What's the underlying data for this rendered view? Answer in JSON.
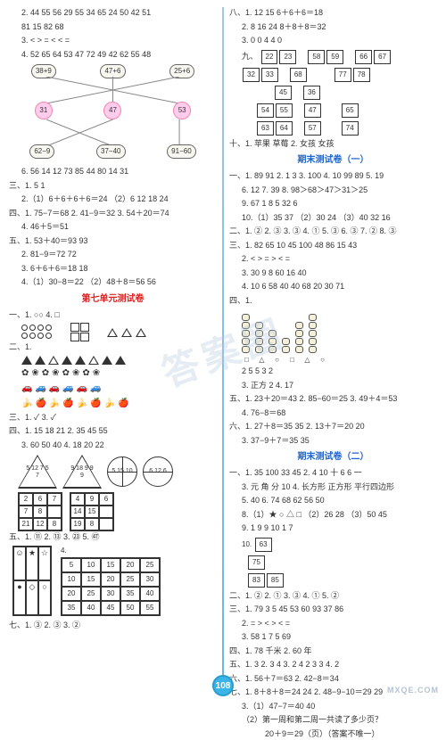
{
  "pageNumber": "108",
  "watermark": "答案圈",
  "footerMark": "MXQE.COM",
  "left": {
    "l1": "2. 44  55  56  29  55  34  65  24  50  42  51",
    "l2": "81  15  82  68",
    "l3": "3.  <   >   =   <   <   =",
    "l4": "4. 52  65  64  53  47  72  49  42  62  55  48",
    "connTop": [
      "38+9",
      "47+6",
      "25+6"
    ],
    "connMid": [
      "31",
      "47",
      "53"
    ],
    "connBot": [
      "62−9",
      "37−40",
      "91−60"
    ],
    "l5": "6. 56  14  12  73  85  44  80  14  31",
    "l6": "三、1. 5  1",
    "l7": "2.（1）6＋6＋6＋6＝24  （2）6  12  18  24",
    "l8": "四、1. 75−7＝68  2. 41−9＝32  3. 54＋20＝74",
    "l9": "4. 46＋5＝51",
    "l10": "五、1. 53＋40＝93  93",
    "l11": "2. 81−9＝72  72",
    "l12": "3. 6＋6＋6＝18  18",
    "l13": "4.（1）30−8＝22   （2）48＋8＝56  56",
    "h1": "第七单元测试卷",
    "l14": "一、1. ○○  4. □",
    "l15": "二、1.",
    "l16": "三、1. ✓  3. ✓",
    "l17": "四、1. 15  18  21  2. 35  45  55",
    "l18": "3. 60  50  40  4. 18  20  22",
    "triA": "5 12\n7\n5 7",
    "triB": "9 18\n9\n9 9",
    "circA": "5 15\n10",
    "circB": "6 12\n6",
    "rectA": [
      "2",
      "6",
      "7",
      "7",
      "8",
      "21",
      "12",
      "8"
    ],
    "rectB": [
      "4",
      "9",
      "6",
      "14",
      "15",
      "19",
      "8"
    ],
    "l19": "五、1. ⑪  2. ⑬  3. ㉓  5. ㊼",
    "grid5": [
      [
        "5",
        "10",
        "15",
        "20",
        "25"
      ],
      [
        "10",
        "15",
        "20",
        "25",
        "30"
      ],
      [
        "20",
        "25",
        "30",
        "35",
        "40"
      ],
      [
        "35",
        "40",
        "45",
        "50",
        "55"
      ]
    ],
    "sixThree": {
      "a": "☺",
      "b": "★",
      "c": "☆",
      "d": "●",
      "e": "◇",
      "f": "○"
    },
    "l20": "七、1. ③  2. ③  3. ②"
  },
  "right": {
    "l1": "八、1. 12  15  6＋6＋6＝18",
    "l2": "2. 8  16  24  8＋8＋8＝32",
    "l3": "3. 0  0  4  4  0",
    "boxRow1": [
      [
        "22",
        "23"
      ],
      [
        "58",
        "59"
      ],
      [
        "66",
        "67"
      ]
    ],
    "boxRow2": [
      [
        "32",
        "33"
      ],
      [
        "68"
      ],
      [
        "77",
        "78"
      ]
    ],
    "boxRow3": [
      [
        "45",
        "36"
      ]
    ],
    "boxRow4": [
      [
        "54",
        "55"
      ],
      [
        "47"
      ],
      [
        "65"
      ]
    ],
    "boxRow5": [
      [
        "63",
        "64"
      ],
      [
        "57"
      ],
      [
        "74"
      ]
    ],
    "l4": "十、1. 苹果  草莓  2. 女孩  女孩",
    "h2": "期末测试卷（一）",
    "l5": "一、1. 89  91  2. 1  3  3. 100  4. 10  99  89  5. 19",
    "l6": "6. 12  7. 39  8. 98＞68＞47＞31＞25",
    "l7": "9. 67  1  8  5  32  6",
    "l8": "10.（1）35  37 （2）30  24 （3）40  32  16",
    "l9": "二、1. ②  2. ③  3. ③  4. ①  5. ③  6. ③  7. ②  8. ③",
    "l10": "三、1. 82  65  10  45  100  48  86  15  43",
    "l11": "2.  <   >   =   >   <   =",
    "l12": "3. 30  9  8  60  16  40",
    "l13": "4. 10  6  58  40  40  68  20  30  71",
    "l14": "四、1.",
    "stacks": [
      5,
      4,
      3,
      2,
      4,
      5
    ],
    "stackLbls": [
      "□",
      "△",
      "○",
      "□",
      "△",
      "○"
    ],
    "l15": "2  5  5  3  2",
    "l16": "3. 正方  2  4. 17",
    "l17": "五、1. 23＋20＝43  2. 85−60＝25  3. 49＋4＝53",
    "l18": "4. 76−8＝68",
    "l19": "六、1. 27＋8＝35   35   2. 13＋7＝20   20",
    "l20": "3. 37−9＋7＝35   35",
    "h3": "期末测试卷（二）",
    "l21": "一、1. 35  100  33  45  2. 4  10  十  6  6  一",
    "l22": "3. 元  角  分  10  4. 长方形  正方形  平行四边形",
    "l23": "5. 40  6. 74  68  62  56  50",
    "l24": "8.（1）★ ○ △ □ （2）26  28 （3）50  45",
    "l25": "9. 1  9  9  10  1  7",
    "boxV": [
      [
        "10",
        "63"
      ],
      [
        "75"
      ],
      [
        "83",
        "85"
      ]
    ],
    "l26": "二、1. ②  2. ①  3. ③  4. ①  5. ②",
    "l27": "三、1. 79  3  5  45  53  60  93  37  86",
    "l28": "2.  =   >   <   >   <   =",
    "l29": "3. 58  1  7  5  69",
    "l30": "四、1. 78 千米  2. 60 年",
    "l31": "五、1. 3  2. 3  4  3. 2  4  2  3  3  4. 2",
    "l32": "六、1. 56＋7＝63  2. 42−8＝34",
    "l33": "七、1. 8＋8＋8＝24  24   2. 48−9−10＝29  29",
    "l34": "3.（1）47−7＝40  40",
    "l35": "（2）第一周和第二周一共读了多少页？",
    "l36": "20＋9＝29（页）（答案不唯一）"
  }
}
